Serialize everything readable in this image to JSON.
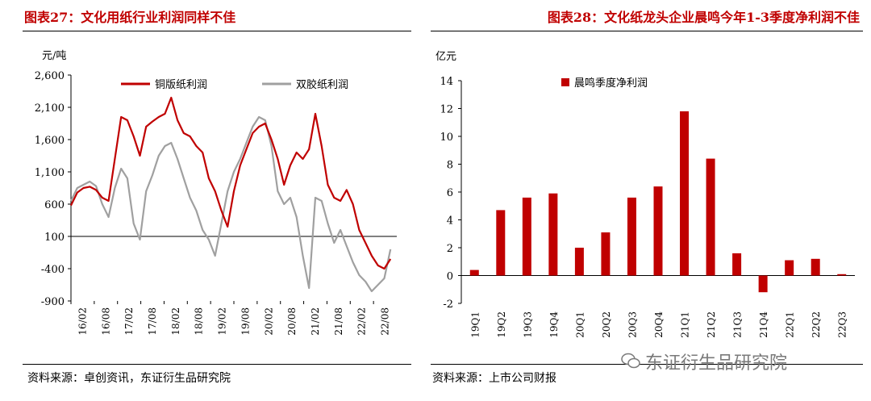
{
  "left": {
    "title": "图表27：文化用纸行业利润同样不佳",
    "source": "资料来源：卓创资讯，东证衍生品研究院"
  },
  "right": {
    "title": "图表28：文化纸龙头企业晨鸣今年1-3季度净利润不佳",
    "source": "资料来源：上市公司财报"
  },
  "watermark": "东证衍生品研究院",
  "chart_data": [
    {
      "type": "line",
      "title": "",
      "ylabel": "元/吨",
      "ylim": [
        -900,
        2600
      ],
      "yticks": [
        2600,
        2100,
        1600,
        1100,
        600,
        100,
        -400,
        -900
      ],
      "ytick_labels": [
        "2,600",
        "2,100",
        "1,600",
        "1,100",
        "600",
        "100",
        "-400",
        "-900"
      ],
      "x_tick_labels": [
        "16/02",
        "16/08",
        "17/02",
        "17/08",
        "18/02",
        "18/08",
        "19/02",
        "19/08",
        "20/02",
        "20/08",
        "21/02",
        "21/08",
        "22/02",
        "22/08"
      ],
      "legend_position": "top",
      "series": [
        {
          "name": "铜版纸利润",
          "color": "#c00000",
          "points": [
            [
              0,
              580
            ],
            [
              1,
              780
            ],
            [
              2,
              850
            ],
            [
              3,
              870
            ],
            [
              4,
              820
            ],
            [
              5,
              700
            ],
            [
              6,
              650
            ],
            [
              7,
              1300
            ],
            [
              8,
              1950
            ],
            [
              9,
              1900
            ],
            [
              10,
              1650
            ],
            [
              11,
              1350
            ],
            [
              12,
              1800
            ],
            [
              13,
              1880
            ],
            [
              14,
              1950
            ],
            [
              15,
              2000
            ],
            [
              16,
              2250
            ],
            [
              17,
              1900
            ],
            [
              18,
              1700
            ],
            [
              19,
              1650
            ],
            [
              20,
              1500
            ],
            [
              21,
              1400
            ],
            [
              22,
              1000
            ],
            [
              23,
              800
            ],
            [
              24,
              500
            ],
            [
              25,
              250
            ],
            [
              26,
              800
            ],
            [
              27,
              1200
            ],
            [
              28,
              1450
            ],
            [
              29,
              1700
            ],
            [
              30,
              1800
            ],
            [
              31,
              1850
            ],
            [
              32,
              1600
            ],
            [
              33,
              1300
            ],
            [
              34,
              900
            ],
            [
              35,
              1200
            ],
            [
              36,
              1400
            ],
            [
              37,
              1300
            ],
            [
              38,
              1450
            ],
            [
              39,
              2000
            ],
            [
              40,
              1500
            ],
            [
              41,
              900
            ],
            [
              42,
              700
            ],
            [
              43,
              650
            ],
            [
              44,
              820
            ],
            [
              45,
              600
            ],
            [
              46,
              200
            ],
            [
              47,
              0
            ],
            [
              48,
              -200
            ],
            [
              49,
              -350
            ],
            [
              50,
              -400
            ],
            [
              51,
              -250
            ]
          ]
        },
        {
          "name": "双胶纸利润",
          "color": "#a0a0a0",
          "points": [
            [
              0,
              650
            ],
            [
              1,
              850
            ],
            [
              2,
              900
            ],
            [
              3,
              950
            ],
            [
              4,
              880
            ],
            [
              5,
              600
            ],
            [
              6,
              400
            ],
            [
              7,
              850
            ],
            [
              8,
              1150
            ],
            [
              9,
              1000
            ],
            [
              10,
              300
            ],
            [
              11,
              50
            ],
            [
              12,
              800
            ],
            [
              13,
              1050
            ],
            [
              14,
              1350
            ],
            [
              15,
              1500
            ],
            [
              16,
              1550
            ],
            [
              17,
              1300
            ],
            [
              18,
              1000
            ],
            [
              19,
              700
            ],
            [
              20,
              500
            ],
            [
              21,
              200
            ],
            [
              22,
              50
            ],
            [
              23,
              -200
            ],
            [
              24,
              300
            ],
            [
              25,
              800
            ],
            [
              26,
              1100
            ],
            [
              27,
              1300
            ],
            [
              28,
              1550
            ],
            [
              29,
              1800
            ],
            [
              30,
              1950
            ],
            [
              31,
              1900
            ],
            [
              32,
              1500
            ],
            [
              33,
              800
            ],
            [
              34,
              600
            ],
            [
              35,
              700
            ],
            [
              36,
              400
            ],
            [
              37,
              -200
            ],
            [
              38,
              -700
            ],
            [
              39,
              700
            ],
            [
              40,
              650
            ],
            [
              41,
              300
            ],
            [
              42,
              0
            ],
            [
              43,
              200
            ],
            [
              44,
              -50
            ],
            [
              45,
              -300
            ],
            [
              46,
              -500
            ],
            [
              47,
              -600
            ],
            [
              48,
              -750
            ],
            [
              49,
              -650
            ],
            [
              50,
              -550
            ],
            [
              51,
              -100
            ]
          ]
        }
      ]
    },
    {
      "type": "bar",
      "title": "",
      "ylabel": "亿元",
      "ylim": [
        -2,
        14
      ],
      "yticks": [
        14,
        12,
        10,
        8,
        6,
        4,
        2,
        0,
        -2
      ],
      "legend_position": "top",
      "categories": [
        "19Q1",
        "19Q2",
        "19Q3",
        "19Q4",
        "20Q1",
        "20Q2",
        "20Q3",
        "20Q4",
        "21Q1",
        "21Q2",
        "21Q3",
        "21Q4",
        "22Q1",
        "22Q2",
        "22Q3"
      ],
      "series": [
        {
          "name": "晨鸣季度净利润",
          "color": "#c00000",
          "values": [
            0.4,
            4.7,
            5.6,
            5.9,
            2.0,
            3.1,
            5.6,
            6.4,
            11.8,
            8.4,
            1.6,
            -1.2,
            1.1,
            1.2,
            0.1
          ]
        }
      ]
    }
  ]
}
